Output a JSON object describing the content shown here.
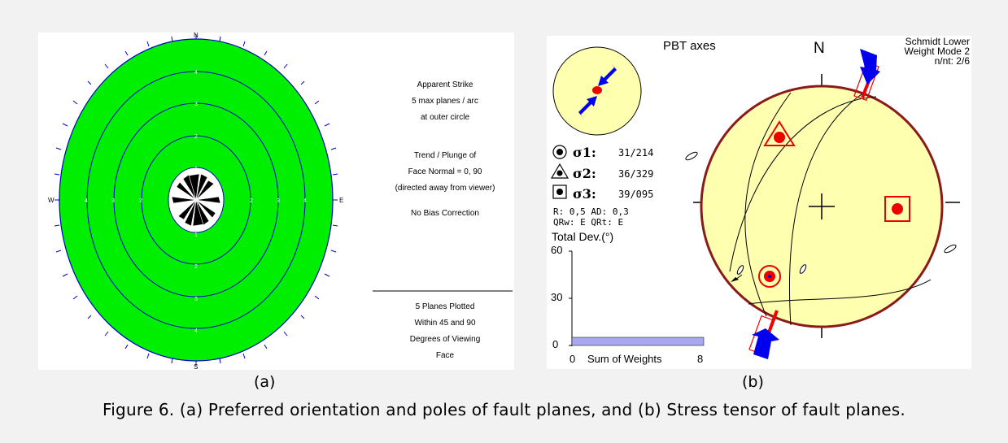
{
  "panel_a": {
    "compass": {
      "n": "N",
      "s": "S",
      "e": "E",
      "w": "W"
    },
    "ring_labels": [
      "1",
      "2",
      "3",
      "4",
      "5"
    ],
    "info_block_1": [
      "Apparent Strike",
      "5 max planes / arc",
      "at outer circle"
    ],
    "info_block_2": [
      "Trend / Plunge of",
      "Face Normal =  0, 90",
      "(directed away from viewer)"
    ],
    "info_block_3": "No Bias Correction",
    "info_block_4": [
      "5 Planes Plotted",
      "Within 45 and 90",
      "Degrees of Viewing",
      "Face"
    ],
    "colors": {
      "fill": "#00ee00",
      "ring": "#0000cc",
      "rose": "#000000"
    }
  },
  "panel_b": {
    "title": "PBT axes",
    "north": "N",
    "projection": [
      "Schmidt Lower",
      "Weight Mode 2",
      "n/nt: 2/6"
    ],
    "sigma": [
      {
        "label": "σ1:",
        "value": "31/214"
      },
      {
        "label": "σ2:",
        "value": "36/329"
      },
      {
        "label": "σ3:",
        "value": "39/095"
      }
    ],
    "ratios": [
      "R: 0,5  AD: 0,3",
      "QRw: E  QRt: E"
    ],
    "histogram": {
      "title": "Total Dev.(°)",
      "y_ticks": [
        "60",
        "30",
        "0"
      ],
      "x_label_left": "0",
      "x_label": "Sum of Weights",
      "x_label_right": "8",
      "value": 5
    },
    "colors": {
      "stereonet": "#ffffb0",
      "rim": "#8b1a1a",
      "axis": "#e00000",
      "arrow": "#0000ee",
      "bar": "#a8a8f0"
    }
  },
  "labels": {
    "a": "(a)",
    "b": "(b)"
  },
  "caption": "Figure 6. (a) Preferred orientation and poles of fault planes, and (b) Stress tensor of fault planes."
}
